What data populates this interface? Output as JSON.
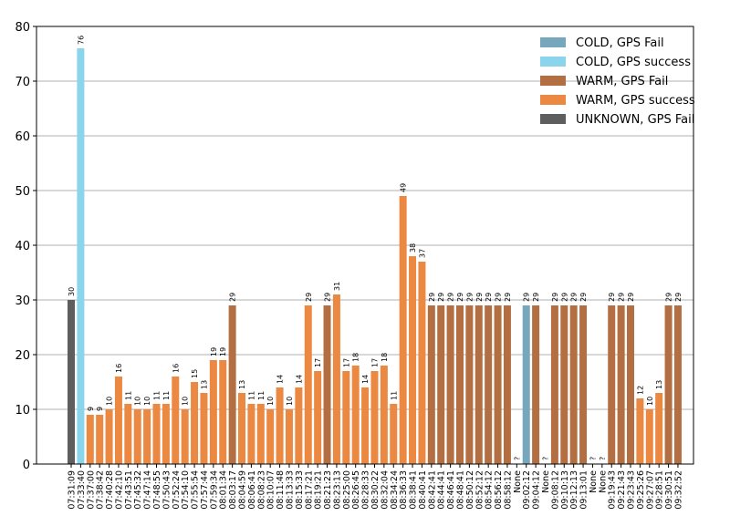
{
  "chart_data": {
    "type": "bar",
    "title": "",
    "xlabel": "",
    "ylabel": "",
    "ylim": [
      0,
      80
    ],
    "yticks": [
      0,
      10,
      20,
      30,
      40,
      50,
      60,
      70,
      80
    ],
    "grid": "y",
    "legend_position": "top-right",
    "legend": [
      {
        "key": "cold_fail",
        "label": "COLD, GPS Fail",
        "color": "#77a7bd"
      },
      {
        "key": "cold_success",
        "label": "COLD, GPS success",
        "color": "#8ad5ec"
      },
      {
        "key": "warm_fail",
        "label": "WARM, GPS Fail",
        "color": "#b36f41"
      },
      {
        "key": "warm_success",
        "label": "WARM, GPS success",
        "color": "#eb8841"
      },
      {
        "key": "unknown_fail",
        "label": "UNKNOWN, GPS Fail",
        "color": "#5e5e5e"
      }
    ],
    "bars": [
      {
        "x": "07:31:09",
        "value": 30,
        "label": "30",
        "group": "unknown_fail"
      },
      {
        "x": "07:33:40",
        "value": 76,
        "label": "76",
        "group": "cold_success"
      },
      {
        "x": "07:37:00",
        "value": 9,
        "label": "9",
        "group": "warm_success"
      },
      {
        "x": "07:38:42",
        "value": 9,
        "label": "9",
        "group": "warm_success"
      },
      {
        "x": "07:40:28",
        "value": 10,
        "label": "10",
        "group": "warm_success"
      },
      {
        "x": "07:42:10",
        "value": 16,
        "label": "16",
        "group": "warm_success"
      },
      {
        "x": "07:43:51",
        "value": 11,
        "label": "11",
        "group": "warm_success"
      },
      {
        "x": "07:45:32",
        "value": 10,
        "label": "10",
        "group": "warm_success"
      },
      {
        "x": "07:47:14",
        "value": 10,
        "label": "10",
        "group": "warm_success"
      },
      {
        "x": "07:48:55",
        "value": 11,
        "label": "11",
        "group": "warm_success"
      },
      {
        "x": "07:50:43",
        "value": 11,
        "label": "11",
        "group": "warm_success"
      },
      {
        "x": "07:52:24",
        "value": 16,
        "label": "16",
        "group": "warm_success"
      },
      {
        "x": "07:54:10",
        "value": 10,
        "label": "10",
        "group": "warm_success"
      },
      {
        "x": "07:55:54",
        "value": 15,
        "label": "15",
        "group": "warm_success"
      },
      {
        "x": "07:57:44",
        "value": 13,
        "label": "13",
        "group": "warm_success"
      },
      {
        "x": "07:59:34",
        "value": 19,
        "label": "19",
        "group": "warm_success"
      },
      {
        "x": "08:01:34",
        "value": 19,
        "label": "19",
        "group": "warm_success"
      },
      {
        "x": "08:03:17",
        "value": 29,
        "label": "29",
        "group": "warm_fail"
      },
      {
        "x": "08:04:59",
        "value": 13,
        "label": "13",
        "group": "warm_success"
      },
      {
        "x": "08:06:41",
        "value": 11,
        "label": "11",
        "group": "warm_success"
      },
      {
        "x": "08:08:23",
        "value": 11,
        "label": "11",
        "group": "warm_success"
      },
      {
        "x": "08:10:07",
        "value": 10,
        "label": "10",
        "group": "warm_success"
      },
      {
        "x": "08:11:48",
        "value": 14,
        "label": "14",
        "group": "warm_success"
      },
      {
        "x": "08:13:33",
        "value": 10,
        "label": "10",
        "group": "warm_success"
      },
      {
        "x": "08:15:33",
        "value": 14,
        "label": "14",
        "group": "warm_success"
      },
      {
        "x": "08:17:21",
        "value": 29,
        "label": "29",
        "group": "warm_success"
      },
      {
        "x": "08:19:21",
        "value": 17,
        "label": "17",
        "group": "warm_success"
      },
      {
        "x": "08:21:23",
        "value": 29,
        "label": "29",
        "group": "warm_fail"
      },
      {
        "x": "08:23:13",
        "value": 31,
        "label": "31",
        "group": "warm_success"
      },
      {
        "x": "08:25:00",
        "value": 17,
        "label": "17",
        "group": "warm_success"
      },
      {
        "x": "08:26:45",
        "value": 18,
        "label": "18",
        "group": "warm_success"
      },
      {
        "x": "08:28:33",
        "value": 14,
        "label": "14",
        "group": "warm_success"
      },
      {
        "x": "08:30:22",
        "value": 17,
        "label": "17",
        "group": "warm_success"
      },
      {
        "x": "08:32:04",
        "value": 18,
        "label": "18",
        "group": "warm_success"
      },
      {
        "x": "08:34:24",
        "value": 11,
        "label": "11",
        "group": "warm_success"
      },
      {
        "x": "08:36:33",
        "value": 49,
        "label": "49",
        "group": "warm_success"
      },
      {
        "x": "08:38:41",
        "value": 38,
        "label": "38",
        "group": "warm_success"
      },
      {
        "x": "08:40:41",
        "value": 37,
        "label": "37",
        "group": "warm_success"
      },
      {
        "x": "08:42:41",
        "value": 29,
        "label": "29",
        "group": "warm_fail"
      },
      {
        "x": "08:44:41",
        "value": 29,
        "label": "29",
        "group": "warm_fail"
      },
      {
        "x": "08:46:41",
        "value": 29,
        "label": "29",
        "group": "warm_fail"
      },
      {
        "x": "08:48:41",
        "value": 29,
        "label": "29",
        "group": "warm_fail"
      },
      {
        "x": "08:50:12",
        "value": 29,
        "label": "29",
        "group": "warm_fail"
      },
      {
        "x": "08:52:12",
        "value": 29,
        "label": "29",
        "group": "warm_fail"
      },
      {
        "x": "08:54:12",
        "value": 29,
        "label": "29",
        "group": "warm_fail"
      },
      {
        "x": "08:56:12",
        "value": 29,
        "label": "29",
        "group": "warm_fail"
      },
      {
        "x": "08:58:12",
        "value": 29,
        "label": "29",
        "group": "warm_fail"
      },
      {
        "x": "None",
        "value": null,
        "label": "?",
        "group": null
      },
      {
        "x": "09:02:12",
        "value": 29,
        "label": "29",
        "group": "cold_fail"
      },
      {
        "x": "09:04:12",
        "value": 29,
        "label": "29",
        "group": "warm_fail"
      },
      {
        "x": "None",
        "value": null,
        "label": "?",
        "group": null
      },
      {
        "x": "09:08:12",
        "value": 29,
        "label": "29",
        "group": "warm_fail"
      },
      {
        "x": "09:10:13",
        "value": 29,
        "label": "29",
        "group": "warm_fail"
      },
      {
        "x": "09:12:13",
        "value": 29,
        "label": "29",
        "group": "warm_fail"
      },
      {
        "x": "09:13:01",
        "value": 29,
        "label": "29",
        "group": "warm_fail"
      },
      {
        "x": "None",
        "value": null,
        "label": "?",
        "group": null
      },
      {
        "x": "None",
        "value": null,
        "label": "?",
        "group": null
      },
      {
        "x": "09:19:43",
        "value": 29,
        "label": "29",
        "group": "warm_fail"
      },
      {
        "x": "09:21:43",
        "value": 29,
        "label": "29",
        "group": "warm_fail"
      },
      {
        "x": "09:23:43",
        "value": 29,
        "label": "29",
        "group": "warm_fail"
      },
      {
        "x": "09:25:26",
        "value": 12,
        "label": "12",
        "group": "warm_success"
      },
      {
        "x": "09:27:07",
        "value": 10,
        "label": "10",
        "group": "warm_success"
      },
      {
        "x": "09:28:51",
        "value": 13,
        "label": "13",
        "group": "warm_success"
      },
      {
        "x": "09:30:51",
        "value": 29,
        "label": "29",
        "group": "warm_fail"
      },
      {
        "x": "09:32:52",
        "value": 29,
        "label": "29",
        "group": "warm_fail"
      }
    ]
  }
}
